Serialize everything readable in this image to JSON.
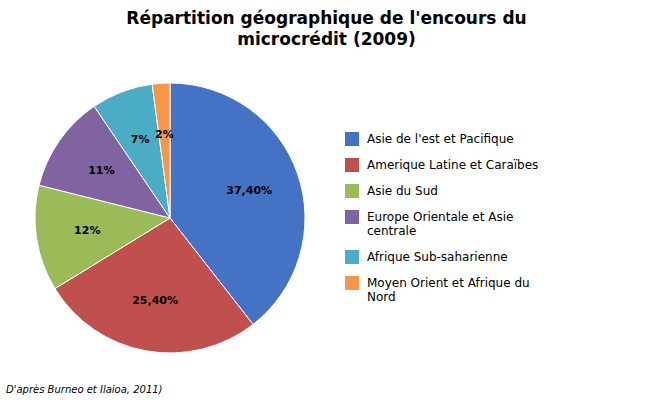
{
  "chart_data": {
    "type": "pie",
    "title": "Répartition géographique de l'encours du\nmicrocrédit (2009)",
    "categories": [
      "Asie de l'est et Pacifique",
      "Amerique Latine et Caraïbes",
      "Asie du Sud",
      "Europe Orientale et Asie\ncentrale",
      "Afrique Sub-saharienne",
      "Moyen Orient et Afrique du\nNord"
    ],
    "values": [
      37.4,
      25.4,
      12,
      11,
      7,
      2
    ],
    "value_labels": [
      "37,40%",
      "25,40%",
      "12%",
      "11%",
      "7%",
      "2%"
    ],
    "data_labels": true,
    "colors": [
      "#4472C4",
      "#C0504D",
      "#9BBB59",
      "#8064A2",
      "#4BACC6",
      "#F79646"
    ],
    "legend": "right",
    "annotations": [
      "D'après Burneo et Ilaioa, 2011)"
    ]
  }
}
